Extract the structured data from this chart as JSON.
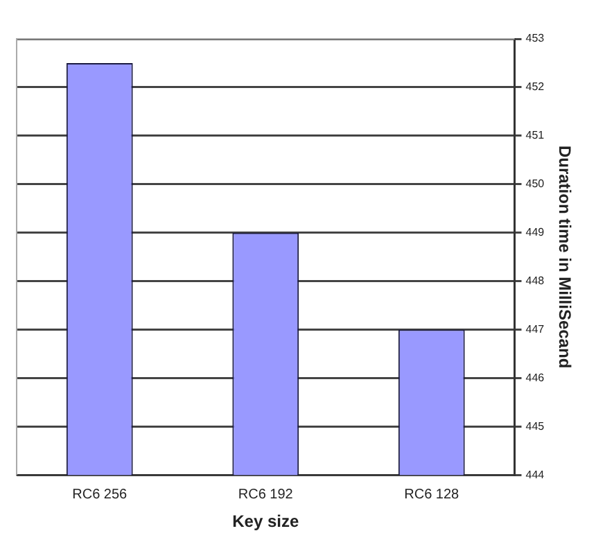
{
  "chart_data": {
    "type": "bar",
    "xlabel": "Key size",
    "ylabel": "Duration time in MilliSecand",
    "categories": [
      "RC6 256",
      "RC6 192",
      "RC6 128"
    ],
    "values": [
      452.5,
      449,
      447
    ],
    "color": "#9999ff",
    "ylim": [
      444,
      453
    ],
    "yticks": [
      444,
      445,
      446,
      447,
      448,
      449,
      450,
      451,
      452,
      453
    ],
    "grid": "y"
  }
}
